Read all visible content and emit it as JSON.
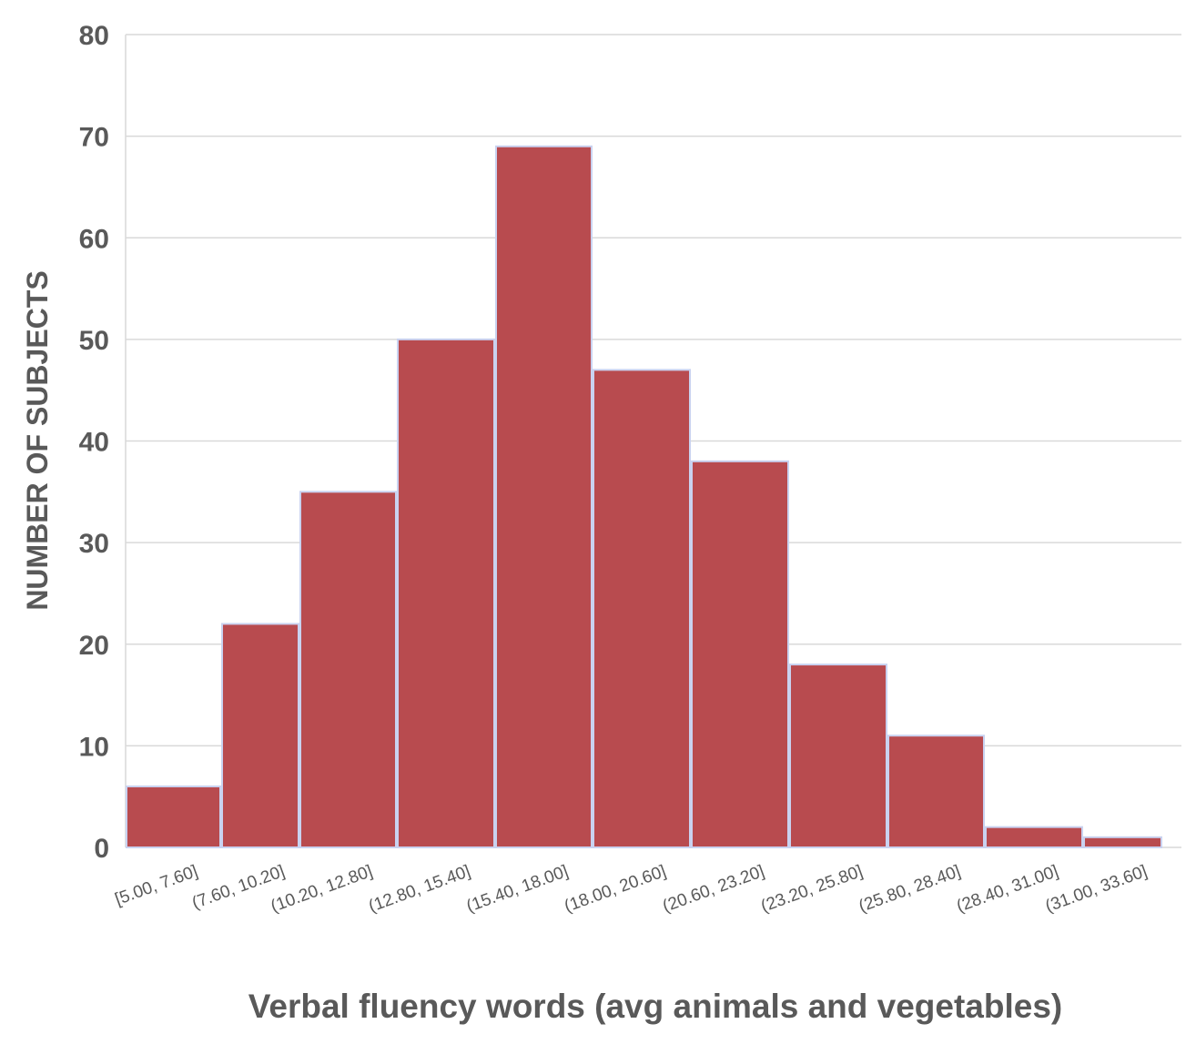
{
  "chart_data": {
    "type": "bar",
    "title": "",
    "xlabel": "Verbal fluency words (avg animals and vegetables)",
    "ylabel": "NUMBER OF SUBJECTS",
    "categories": [
      "[5.00, 7.60]",
      "(7.60, 10.20]",
      "(10.20, 12.80]",
      "(12.80, 15.40]",
      "(15.40, 18.00]",
      "(18.00, 20.60]",
      "(20.60, 23.20]",
      "(23.20, 25.80]",
      "(25.80, 28.40]",
      "(28.40, 31.00]",
      "(31.00, 33.60]"
    ],
    "values": [
      6,
      22,
      35,
      50,
      69,
      47,
      38,
      18,
      11,
      2,
      1
    ],
    "ylim": [
      0,
      80
    ],
    "yticks": [
      0,
      10,
      20,
      30,
      40,
      50,
      60,
      70,
      80
    ],
    "grid": true,
    "legend": "none",
    "colors": {
      "bar": "#b84b4f",
      "bar_edge": "#c9d2f0",
      "grid": "#d9d9d9",
      "tick_text": "#595959",
      "axis_title": "#595959"
    }
  }
}
